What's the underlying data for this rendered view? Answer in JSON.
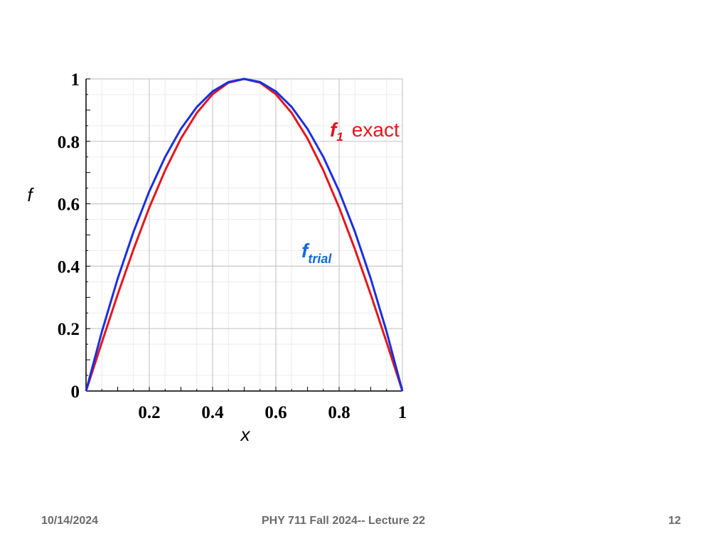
{
  "chart_data": {
    "type": "line",
    "title": "",
    "xlabel": "x",
    "ylabel": "f",
    "xlim": [
      0,
      1
    ],
    "ylim": [
      0,
      1
    ],
    "xticks": [
      "0.2",
      "0.4",
      "0.6",
      "0.8",
      "1"
    ],
    "yticks": [
      "0",
      "0.2",
      "0.4",
      "0.6",
      "0.8",
      "1"
    ],
    "grid": true,
    "series": [
      {
        "name_main": "f",
        "name_sub": "1",
        "name_suffix": "exact",
        "color": "#e3161d",
        "x": [
          0,
          0.05,
          0.1,
          0.15,
          0.2,
          0.25,
          0.3,
          0.35,
          0.4,
          0.45,
          0.5,
          0.55,
          0.6,
          0.65,
          0.7,
          0.75,
          0.8,
          0.85,
          0.9,
          0.95,
          1
        ],
        "y": [
          0,
          0.156,
          0.309,
          0.454,
          0.588,
          0.707,
          0.809,
          0.891,
          0.951,
          0.988,
          1,
          0.988,
          0.951,
          0.891,
          0.809,
          0.707,
          0.588,
          0.454,
          0.309,
          0.156,
          0
        ]
      },
      {
        "name_main": "f",
        "name_sub": "trial",
        "color": "#1a2fe0",
        "label_color": "#1469d6",
        "x": [
          0,
          0.05,
          0.1,
          0.15,
          0.2,
          0.25,
          0.3,
          0.35,
          0.4,
          0.45,
          0.5,
          0.55,
          0.6,
          0.65,
          0.7,
          0.75,
          0.8,
          0.85,
          0.9,
          0.95,
          1
        ],
        "y": [
          0,
          0.19,
          0.36,
          0.51,
          0.64,
          0.75,
          0.84,
          0.91,
          0.96,
          0.99,
          1,
          0.99,
          0.96,
          0.91,
          0.84,
          0.75,
          0.64,
          0.51,
          0.36,
          0.19,
          0
        ]
      }
    ]
  },
  "footer": {
    "date": "10/14/2024",
    "title": "PHY 711  Fall 2024-- Lecture 22",
    "page": "12"
  }
}
